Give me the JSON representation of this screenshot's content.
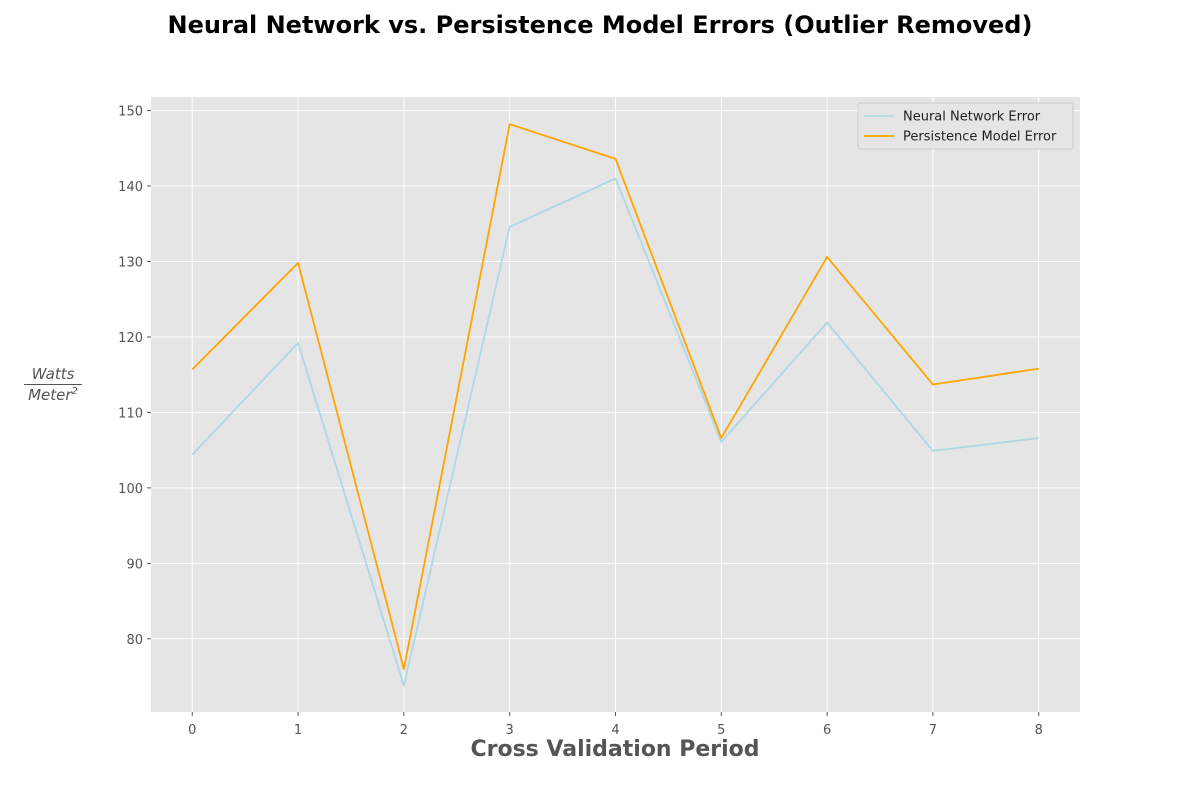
{
  "chart_data": {
    "type": "line",
    "title": "Neural Network vs. Persistence Model Errors (Outlier Removed)",
    "xlabel": "Cross Validation Period",
    "ylabel": {
      "numerator": "Watts",
      "denominator": "Meter",
      "exponent": "2"
    },
    "x": [
      0,
      1,
      2,
      3,
      4,
      5,
      6,
      7,
      8
    ],
    "xticks": [
      "0",
      "1",
      "2",
      "3",
      "4",
      "5",
      "6",
      "7",
      "8"
    ],
    "yticks": [
      "80",
      "90",
      "100",
      "110",
      "120",
      "130",
      "140",
      "150"
    ],
    "xlim": [
      -0.39,
      8.39
    ],
    "ylim": [
      70.3,
      151.8
    ],
    "grid": true,
    "legend_position": "top-right",
    "series": [
      {
        "name": "Neural Network Error",
        "color": "#add8e6",
        "values": [
          104.4,
          119.2,
          73.8,
          134.6,
          141.0,
          106.1,
          121.9,
          104.9,
          106.6
        ]
      },
      {
        "name": "Persistence Model Error",
        "color": "#ffa500",
        "values": [
          115.7,
          129.8,
          76.0,
          148.2,
          143.6,
          106.6,
          130.6,
          113.7,
          115.8
        ]
      }
    ],
    "style": {
      "plot_background": "#e5e5e5",
      "grid_color": "#ffffff"
    }
  }
}
